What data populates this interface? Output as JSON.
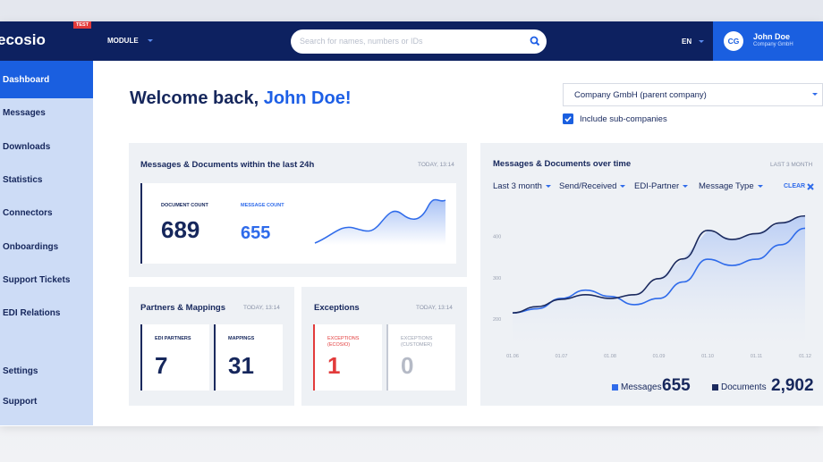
{
  "topbar": {
    "logo": "ecosio",
    "badge": "TEST",
    "module": "MODULE",
    "search_placeholder": "Search for names, numbers or IDs",
    "language": "EN",
    "user": {
      "initials": "CG",
      "name": "John Doe",
      "company": "Company GmbH"
    }
  },
  "sidebar": {
    "items": [
      "Dashboard",
      "Messages",
      "Downloads",
      "Statistics",
      "Connectors",
      "Onboardings",
      "Support Tickets",
      "EDI Relations"
    ],
    "bottom_items": [
      "Settings",
      "Support"
    ],
    "active": "Dashboard"
  },
  "welcome": {
    "greeting": "Welcome back,",
    "name": "John Doe!"
  },
  "company_select": {
    "value": "Company GmbH (parent company)",
    "checkbox": "Include sub-companies",
    "checked": true
  },
  "last24h": {
    "title": "Messages & Documents within the last 24h",
    "time": "TODAY, 13:14",
    "document_label": "DOCUMENT COUNT",
    "document_count": 689,
    "message_label": "MESSAGE COUNT",
    "message_count": 655
  },
  "partners": {
    "title": "Partners & Mappings",
    "time": "TODAY, 13:14",
    "partners_label": "EDI PARTNERS",
    "partners": 7,
    "mappings_label": "MAPPINGS",
    "mappings": 31
  },
  "exceptions": {
    "title": "Exceptions",
    "time": "TODAY, 13:14",
    "ecosio_label": "EXCEPTIONS (ECOSIO)",
    "ecosio": 1,
    "customer_label": "EXCEPTIONS (CUSTOMER)",
    "customer": 0
  },
  "chart_data": {
    "type": "line",
    "title": "Messages & Documents over time",
    "subtitle": "LAST 3 MONTH",
    "filters": [
      "Last 3 month",
      "Send/Received",
      "EDI-Partner",
      "Message Type"
    ],
    "clear": "CLEAR",
    "categories": [
      "01.06",
      null,
      "01.07",
      null,
      "01.08",
      null,
      "01.09",
      null,
      "01.10",
      null,
      "01.11",
      null,
      "01.12"
    ],
    "series": [
      {
        "name": "Messages",
        "color": "#2f6bea",
        "total": "655",
        "values": [
          215,
          225,
          250,
          270,
          255,
          235,
          250,
          290,
          345,
          330,
          345,
          380,
          420
        ]
      },
      {
        "name": "Documents",
        "color": "#1b2a5e",
        "total": "2,902",
        "values": [
          215,
          230,
          248,
          259,
          250,
          259,
          298,
          346,
          415,
          393,
          407,
          433,
          450
        ]
      }
    ],
    "ylim": [
      120,
      460
    ],
    "yticks": [
      200,
      300,
      400
    ],
    "grid": false
  }
}
